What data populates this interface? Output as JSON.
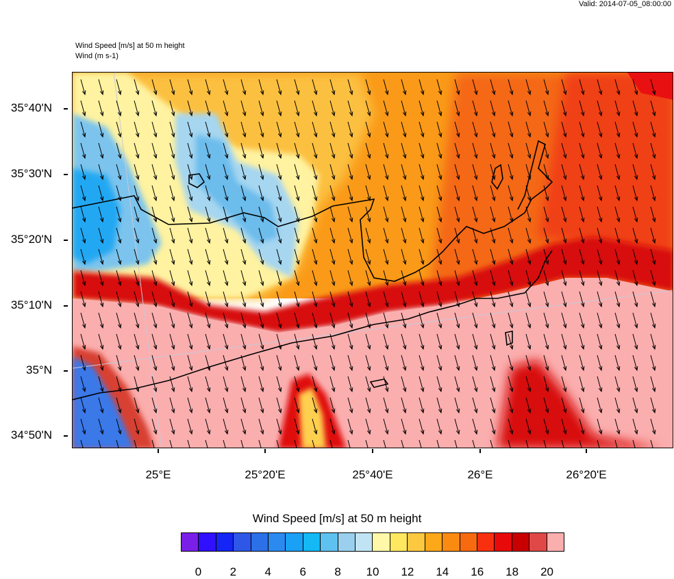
{
  "valid_label": "Valid: 2014-07-05_08:00:00",
  "subtitles": [
    "Wind Speed [m/s] at 50 m height",
    "Wind   (m s-1)"
  ],
  "lat_labels": [
    "35°40'N",
    "35°30'N",
    "35°20'N",
    "35°10'N",
    "35°N",
    "34°50'N"
  ],
  "lon_labels": [
    "25°E",
    "25°20'E",
    "25°40'E",
    "26°E",
    "26°20'E"
  ],
  "legend": {
    "title": "Wind Speed [m/s] at 50 m height",
    "labels": [
      "0",
      "2",
      "4",
      "6",
      "8",
      "10",
      "12",
      "14",
      "16",
      "18",
      "20"
    ],
    "colors": [
      "#7a1fe8",
      "#3010ff",
      "#1525f5",
      "#2e57e8",
      "#2c70e8",
      "#2a8af0",
      "#1aa0f5",
      "#14b8f5",
      "#5ec2f0",
      "#9ad0ee",
      "#c0e4f4",
      "#fff8a8",
      "#ffe860",
      "#fcc840",
      "#fca818",
      "#fa8a10",
      "#f86a10",
      "#f83010",
      "#e80a0a",
      "#c80000",
      "#e04848",
      "#fbaeae"
    ]
  },
  "map": {
    "land_fill_south": "#fbaeae",
    "north_orange": "#fa9a18",
    "northeast_red": "#f64818",
    "band_red": "#d80808",
    "west_blue": "#7cc4ee",
    "west_yellow": "#fff2a0"
  }
}
